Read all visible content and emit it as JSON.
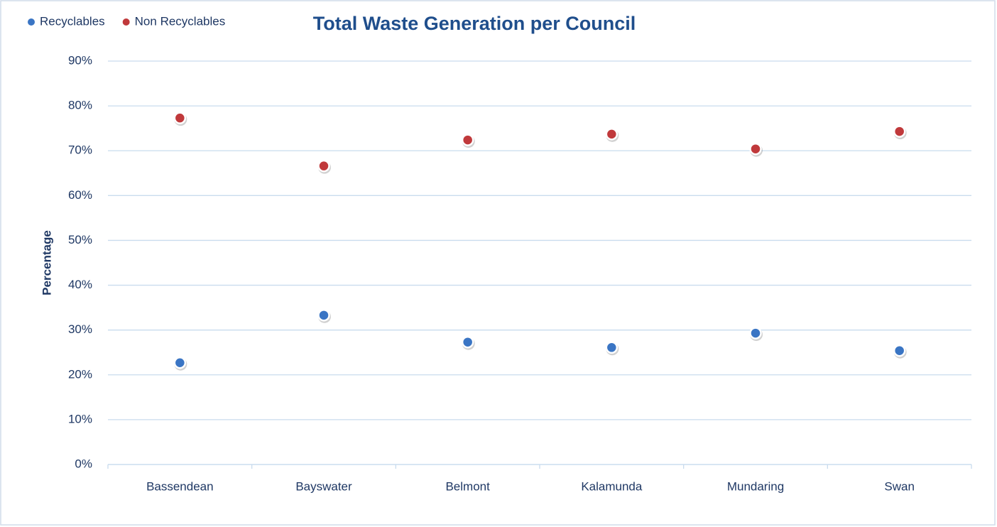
{
  "chart_data": {
    "type": "scatter",
    "title": "Total Waste Generation per Council",
    "y_label": "Percentage",
    "categories": [
      "Bassendean",
      "Bayswater",
      "Belmont",
      "Kalamunda",
      "Mundaring",
      "Swan"
    ],
    "series": [
      {
        "name": "Recyclables",
        "color": "#3a75c4",
        "values": [
          22.7,
          33.3,
          27.3,
          26.1,
          29.3,
          25.4
        ]
      },
      {
        "name": "Non Recyclables",
        "color": "#c0393b",
        "values": [
          77.3,
          66.6,
          72.4,
          73.7,
          70.4,
          74.3
        ]
      }
    ],
    "ylim": [
      0,
      90
    ],
    "yticks": [
      {
        "value": 0,
        "label": "0%"
      },
      {
        "value": 10,
        "label": "10%"
      },
      {
        "value": 20,
        "label": "20%"
      },
      {
        "value": 30,
        "label": "30%"
      },
      {
        "value": 40,
        "label": "40%"
      },
      {
        "value": 50,
        "label": "50%"
      },
      {
        "value": 60,
        "label": "60%"
      },
      {
        "value": 70,
        "label": "70%"
      },
      {
        "value": 80,
        "label": "80%"
      },
      {
        "value": 90,
        "label": "90%"
      }
    ],
    "grid": true,
    "legend": "top-left"
  }
}
